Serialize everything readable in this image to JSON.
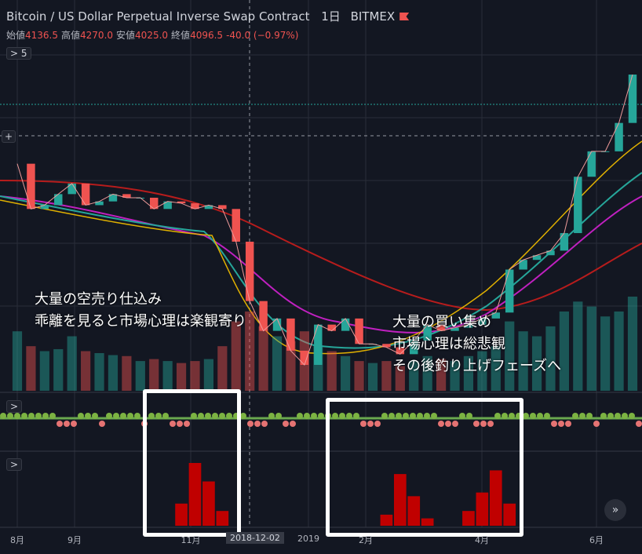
{
  "header": {
    "title": "Bitcoin / US Dollar Perpetual Inverse Swap Contract",
    "interval": "1日",
    "exchange": "BITMEX",
    "ohlc": [
      {
        "label": "始値",
        "value": "4136.5"
      },
      {
        "label": "高値",
        "value": "4270.0"
      },
      {
        "label": "安値",
        "value": "4025.0"
      },
      {
        "label": "終値",
        "value": "4096.5"
      }
    ],
    "change": "-40.0 (−0.97%)"
  },
  "indicator_count": "5",
  "annotations": [
    [
      "大量の空売り仕込み",
      "乖離を見ると市場心理は楽観寄り"
    ],
    [
      "大量の買い集め",
      "市場心理は総悲観",
      "その後釣り上げフェーズへ"
    ]
  ],
  "x_axis": {
    "labels": [
      "8月",
      "9月",
      "11月",
      "2019",
      "2月",
      "4月",
      "6月"
    ],
    "crosshair_label": "2018-12-02"
  },
  "price": [
    7600,
    6300,
    6400,
    6700,
    7000,
    6400,
    6500,
    6700,
    6600,
    6600,
    6300,
    6500,
    6450,
    6300,
    6400,
    6300,
    5500,
    4300,
    3800,
    4000,
    3500,
    3300,
    3900,
    3800,
    4000,
    3600,
    3600,
    3550,
    3450,
    3650,
    3900,
    3800,
    3850,
    3900,
    4000,
    4100,
    4900,
    5100,
    5200,
    5300,
    5700,
    7200,
    8000,
    8000,
    9000,
    11000
  ],
  "volume": [
    60,
    45,
    40,
    42,
    55,
    40,
    38,
    36,
    35,
    30,
    32,
    30,
    28,
    30,
    32,
    45,
    70,
    80,
    65,
    55,
    50,
    60,
    45,
    40,
    35,
    30,
    28,
    30,
    25,
    30,
    35,
    32,
    30,
    35,
    40,
    45,
    70,
    60,
    55,
    65,
    80,
    90,
    85,
    75,
    80,
    95
  ],
  "histogram": [
    0,
    0,
    0,
    0,
    0,
    0,
    0,
    0,
    0,
    0,
    0,
    0,
    30,
    85,
    60,
    20,
    0,
    0,
    0,
    0,
    0,
    0,
    0,
    0,
    0,
    0,
    0,
    15,
    70,
    40,
    10,
    0,
    0,
    20,
    45,
    75,
    30,
    0,
    0,
    0,
    0,
    0,
    0,
    0,
    0,
    0
  ]
}
